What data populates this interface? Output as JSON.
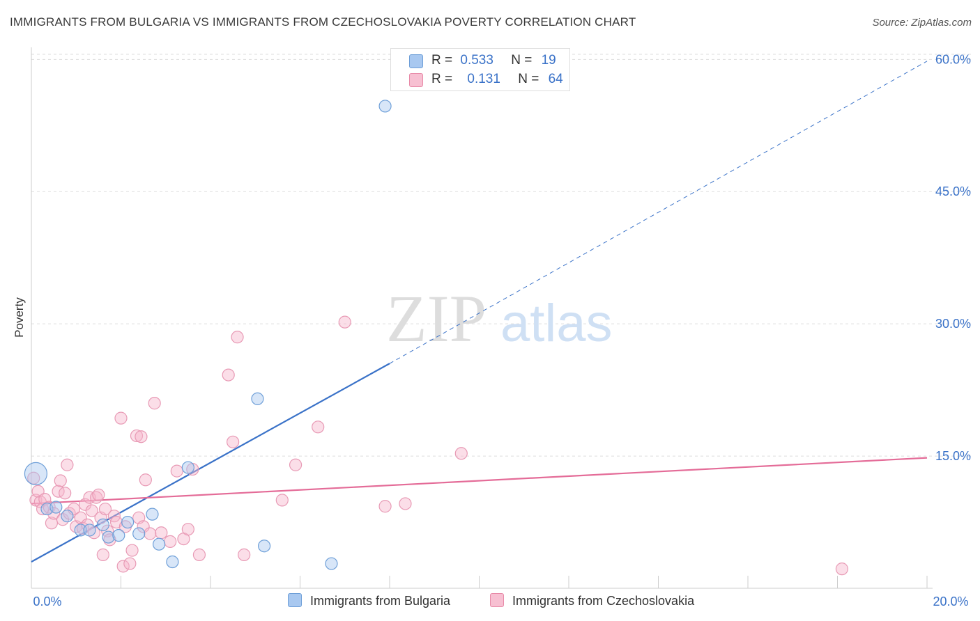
{
  "title": "IMMIGRANTS FROM BULGARIA VS IMMIGRANTS FROM CZECHOSLOVAKIA POVERTY CORRELATION CHART",
  "source": "Source: ZipAtlas.com",
  "watermark": {
    "zip": "ZIP",
    "atlas": "atlas"
  },
  "legend": {
    "rows": [
      {
        "r_label": "R =",
        "r_value": "0.533",
        "n_label": "N =",
        "n_value": "19",
        "color": "#a8c8f0",
        "border": "#6e9fd8"
      },
      {
        "r_label": "R =",
        "r_value": "0.131",
        "n_label": "N =",
        "n_value": "64",
        "color": "#f7c0d2",
        "border": "#e88aa8"
      }
    ]
  },
  "colors": {
    "blue": "#3a72c8",
    "blue_fill": "rgba(168,200,240,0.45)",
    "pink": "#e46c98",
    "pink_fill": "rgba(247,182,204,0.45)",
    "grid": "#dddddd",
    "tick_label": "#3a72c8"
  },
  "chart_data": {
    "type": "scatter",
    "title": "IMMIGRANTS FROM BULGARIA VS IMMIGRANTS FROM CZECHOSLOVAKIA POVERTY CORRELATION CHART",
    "xlabel": "",
    "ylabel": "Poverty",
    "xlim": [
      0,
      20
    ],
    "ylim": [
      0,
      62
    ],
    "x_tick_labels": [
      "0.0%",
      "20.0%"
    ],
    "y_ticks": [
      15,
      30,
      45,
      60
    ],
    "y_tick_labels": [
      "15.0%",
      "30.0%",
      "45.0%",
      "60.0%"
    ],
    "series": [
      {
        "name": "Immigrants from Bulgaria",
        "points": [
          [
            0.1,
            13.0
          ],
          [
            0.35,
            9.0
          ],
          [
            0.55,
            9.2
          ],
          [
            0.8,
            8.2
          ],
          [
            1.1,
            6.6
          ],
          [
            1.3,
            6.6
          ],
          [
            1.6,
            7.2
          ],
          [
            1.72,
            5.8
          ],
          [
            1.95,
            6.0
          ],
          [
            2.15,
            7.5
          ],
          [
            2.4,
            6.2
          ],
          [
            2.7,
            8.4
          ],
          [
            2.85,
            5.0
          ],
          [
            3.15,
            3.0
          ],
          [
            3.5,
            13.7
          ],
          [
            5.05,
            21.5
          ],
          [
            5.2,
            4.8
          ],
          [
            6.7,
            2.8
          ],
          [
            7.9,
            54.7
          ]
        ],
        "big_point_index": 0,
        "trend": {
          "x0": 0,
          "y0": 3.0,
          "x1": 8.0,
          "y1": 25.5,
          "x_end": 20,
          "y_end": 59.8
        }
      },
      {
        "name": "Immigrants from Czechoslovakia",
        "points": [
          [
            0.05,
            12.5
          ],
          [
            0.1,
            10.0
          ],
          [
            0.15,
            11.0
          ],
          [
            0.2,
            9.8
          ],
          [
            0.25,
            9.0
          ],
          [
            0.3,
            10.1
          ],
          [
            0.4,
            9.2
          ],
          [
            0.45,
            7.4
          ],
          [
            0.5,
            8.5
          ],
          [
            0.6,
            11.0
          ],
          [
            0.65,
            12.2
          ],
          [
            0.7,
            7.8
          ],
          [
            0.75,
            10.8
          ],
          [
            0.8,
            14.0
          ],
          [
            0.85,
            8.5
          ],
          [
            0.95,
            9.0
          ],
          [
            1.0,
            7.0
          ],
          [
            1.1,
            8.0
          ],
          [
            1.15,
            6.8
          ],
          [
            1.2,
            9.5
          ],
          [
            1.25,
            7.2
          ],
          [
            1.3,
            10.3
          ],
          [
            1.35,
            8.8
          ],
          [
            1.4,
            6.3
          ],
          [
            1.45,
            10.3
          ],
          [
            1.5,
            10.6
          ],
          [
            1.55,
            8.0
          ],
          [
            1.6,
            3.8
          ],
          [
            1.65,
            9.0
          ],
          [
            1.7,
            6.5
          ],
          [
            1.75,
            5.5
          ],
          [
            1.85,
            8.2
          ],
          [
            1.9,
            7.5
          ],
          [
            2.0,
            19.3
          ],
          [
            2.05,
            2.5
          ],
          [
            2.1,
            7.0
          ],
          [
            2.2,
            2.8
          ],
          [
            2.25,
            4.3
          ],
          [
            2.35,
            17.3
          ],
          [
            2.4,
            8.0
          ],
          [
            2.45,
            17.2
          ],
          [
            2.5,
            7.0
          ],
          [
            2.55,
            12.3
          ],
          [
            2.65,
            6.2
          ],
          [
            2.75,
            21.0
          ],
          [
            2.9,
            6.3
          ],
          [
            3.1,
            5.3
          ],
          [
            3.25,
            13.3
          ],
          [
            3.4,
            5.6
          ],
          [
            3.5,
            6.7
          ],
          [
            3.6,
            13.5
          ],
          [
            3.75,
            3.8
          ],
          [
            4.4,
            24.2
          ],
          [
            4.5,
            16.6
          ],
          [
            4.6,
            28.5
          ],
          [
            4.75,
            3.8
          ],
          [
            5.6,
            10.0
          ],
          [
            5.9,
            14.0
          ],
          [
            6.4,
            18.3
          ],
          [
            7.0,
            30.2
          ],
          [
            7.9,
            9.3
          ],
          [
            8.35,
            9.6
          ],
          [
            9.6,
            15.3
          ],
          [
            18.1,
            2.2
          ]
        ],
        "trend": {
          "x0": 0,
          "y0": 9.6,
          "x1": 20,
          "y1": 14.8
        }
      }
    ],
    "legend_position": "top-center",
    "grid": true
  }
}
